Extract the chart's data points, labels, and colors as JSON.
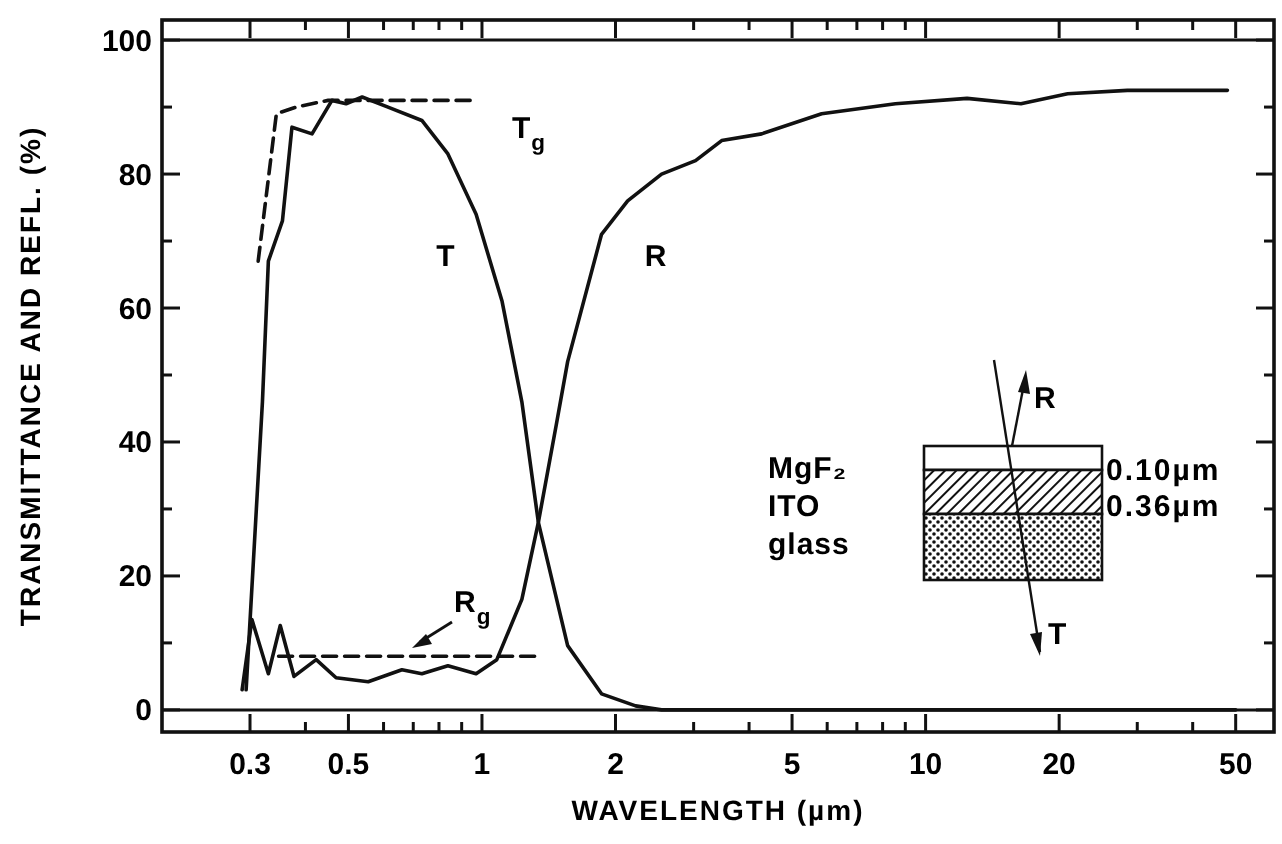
{
  "chart_data": {
    "type": "line",
    "xlabel": "WAVELENGTH (µm)",
    "ylabel": "TRANSMITTANCE AND REFL. (%)",
    "log": "x",
    "xlim": [
      0.19,
      61
    ],
    "ylim": [
      -3.3,
      103
    ],
    "xticks": [
      0.3,
      {
        "value": 0.4,
        "label": null
      },
      0.5,
      {
        "value": 0.6,
        "label": null
      },
      {
        "value": 0.7,
        "label": null
      },
      {
        "value": 0.8,
        "label": null
      },
      {
        "value": 0.9,
        "label": null
      },
      1,
      2,
      {
        "value": 3,
        "label": null
      },
      {
        "value": 4,
        "label": null
      },
      5,
      {
        "value": 6,
        "label": null
      },
      {
        "value": 7,
        "label": null
      },
      {
        "value": 8,
        "label": null
      },
      {
        "value": 9,
        "label": null
      },
      10,
      20,
      {
        "value": 30,
        "label": null
      },
      {
        "value": 40,
        "label": null
      },
      50
    ],
    "yticks": [
      0,
      {
        "value": 10,
        "label": null
      },
      20,
      {
        "value": 30,
        "label": null
      },
      40,
      {
        "value": 50,
        "label": null
      },
      60,
      {
        "value": 70,
        "label": null
      },
      80,
      {
        "value": 90,
        "label": null
      },
      100
    ],
    "grid": false,
    "series": [
      {
        "color": "#111111",
        "line_style": "solid",
        "x": [
          0.294,
          0.32,
          0.33,
          0.355,
          0.373,
          0.414,
          0.459,
          0.494,
          0.537,
          0.614,
          0.732,
          0.838,
          0.97,
          1.11,
          1.23,
          1.34,
          1.56,
          1.86,
          2.22,
          2.54,
          5,
          20,
          50
        ],
        "values": [
          3,
          46,
          67,
          73,
          87,
          86,
          91,
          90.5,
          91.5,
          90,
          88,
          83,
          74,
          61,
          46,
          28,
          9.6,
          2.4,
          0.6,
          0,
          0,
          0,
          0
        ]
      },
      {
        "color": "#111111",
        "line_style": "solid",
        "x": [
          0.288,
          0.303,
          0.33,
          0.351,
          0.377,
          0.423,
          0.469,
          0.554,
          0.66,
          0.732,
          0.838,
          0.97,
          1.08,
          1.23,
          1.34,
          1.47,
          1.56,
          1.86,
          2.13,
          2.54,
          3.03,
          3.47,
          4.27,
          5.83,
          8.55,
          12.4,
          16.4,
          20.9,
          28.5,
          47.9
        ],
        "values": [
          3,
          13.5,
          5.4,
          12.6,
          5,
          7.5,
          4.8,
          4.2,
          6,
          5.4,
          6.6,
          5.4,
          7.5,
          16.5,
          28,
          42.5,
          52,
          71,
          76,
          80,
          82,
          85,
          86,
          89,
          90.5,
          91.3,
          90.5,
          92,
          92.5,
          92.5
        ]
      },
      {
        "color": "#111111",
        "line_style": "dashed",
        "x": [
          0.313,
          0.344,
          0.381,
          0.45,
          0.97
        ],
        "values": [
          67,
          89,
          90,
          91,
          91
        ]
      },
      {
        "color": "#111111",
        "line_style": "dashed",
        "x": [
          0.348,
          1.34
        ],
        "values": [
          8,
          8
        ]
      }
    ],
    "ref_lines": [
      {
        "axis": "y",
        "value": 0
      },
      {
        "axis": "y",
        "value": 100
      }
    ],
    "annotations": [
      "T",
      "R",
      "T$_{g}$",
      "R$_{g}$",
      "MgF₂",
      "ITO",
      "glass",
      "0.10µm",
      "0.36µm",
      "R",
      "T"
    ]
  }
}
